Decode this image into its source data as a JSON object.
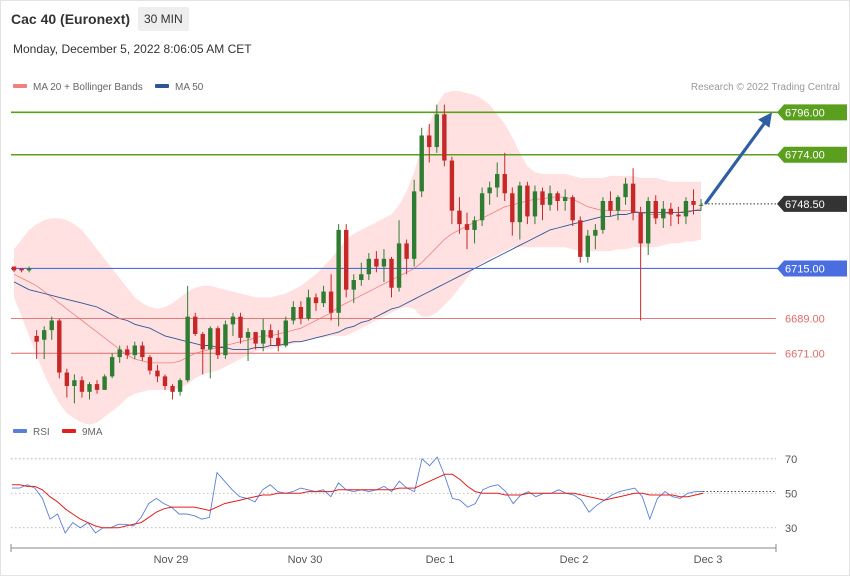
{
  "header": {
    "title": "Cac 40 (Euronext)",
    "interval": "30 MIN",
    "datetime": "Monday, December 5, 2022 8:06:05 AM CET"
  },
  "price_legend": {
    "items": [
      {
        "label": "MA 20 + Bollinger Bands",
        "color": "#f08080"
      },
      {
        "label": "MA 50",
        "color": "#2f5597"
      }
    ],
    "credit": "Research © 2022 Trading Central"
  },
  "rsi_legend": {
    "items": [
      {
        "label": "RSI",
        "color": "#5b7fd6"
      },
      {
        "label": "9MA",
        "color": "#e02020"
      }
    ]
  },
  "colors": {
    "resistance": "#5aa01e",
    "support_blue": "#4a6ee0",
    "support_red": "#e06b6b",
    "current": "#333333",
    "up_candle": "#2e7d32",
    "down_candle": "#c62828",
    "band_fill": "#ffdcdc",
    "arrow": "#2f5fa0"
  },
  "x_axis": {
    "labels": [
      "Nov 29",
      "Nov 30",
      "Dec 1",
      "Dec 2",
      "Dec 3"
    ]
  },
  "chart_data": [
    {
      "type": "candlestick",
      "price_range": [
        6640,
        6805
      ],
      "levels": [
        {
          "value": 6796.0,
          "label": "6796.00",
          "kind": "resistance"
        },
        {
          "value": 6774.0,
          "label": "6774.00",
          "kind": "resistance"
        },
        {
          "value": 6748.5,
          "label": "6748.50",
          "kind": "current"
        },
        {
          "value": 6715.0,
          "label": "6715.00",
          "kind": "support"
        },
        {
          "value": 6689.0,
          "label": "6689.00",
          "kind": "support-weak"
        },
        {
          "value": 6671.0,
          "label": "6671.00",
          "kind": "support-weak"
        }
      ],
      "ohlc": [
        [
          6716,
          6716,
          6713,
          6714
        ],
        [
          6715,
          6715,
          6713,
          6714
        ],
        [
          6714,
          6716,
          6713,
          6715
        ],
        [
          6680,
          6683,
          6668,
          6677
        ],
        [
          6678,
          6685,
          6668,
          6683
        ],
        [
          6683,
          6690,
          6678,
          6688
        ],
        [
          6688,
          6689,
          6658,
          6661
        ],
        [
          6661,
          6663,
          6648,
          6654
        ],
        [
          6654,
          6660,
          6645,
          6657
        ],
        [
          6657,
          6659,
          6648,
          6651
        ],
        [
          6651,
          6656,
          6647,
          6655
        ],
        [
          6655,
          6657,
          6650,
          6652
        ],
        [
          6652,
          6660,
          6652,
          6659
        ],
        [
          6659,
          6671,
          6658,
          6669
        ],
        [
          6669,
          6675,
          6666,
          6673
        ],
        [
          6673,
          6675,
          6668,
          6670
        ],
        [
          6670,
          6677,
          6668,
          6675
        ],
        [
          6675,
          6677,
          6667,
          6669
        ],
        [
          6669,
          6670,
          6660,
          6662
        ],
        [
          6662,
          6665,
          6656,
          6659
        ],
        [
          6659,
          6660,
          6652,
          6654
        ],
        [
          6654,
          6655,
          6647,
          6651
        ],
        [
          6651,
          6658,
          6649,
          6657
        ],
        [
          6657,
          6706,
          6656,
          6690
        ],
        [
          6690,
          6692,
          6680,
          6681
        ],
        [
          6681,
          6682,
          6660,
          6673
        ],
        [
          6673,
          6685,
          6658,
          6684
        ],
        [
          6684,
          6685,
          6668,
          6670
        ],
        [
          6670,
          6688,
          6668,
          6686
        ],
        [
          6686,
          6692,
          6680,
          6690
        ],
        [
          6690,
          6692,
          6676,
          6679
        ],
        [
          6679,
          6684,
          6667,
          6682
        ],
        [
          6682,
          6682,
          6673,
          6676
        ],
        [
          6676,
          6689,
          6672,
          6683
        ],
        [
          6683,
          6686,
          6675,
          6679
        ],
        [
          6679,
          6683,
          6672,
          6675
        ],
        [
          6675,
          6690,
          6674,
          6688
        ],
        [
          6688,
          6698,
          6686,
          6695
        ],
        [
          6695,
          6698,
          6686,
          6689
        ],
        [
          6689,
          6704,
          6688,
          6700
        ],
        [
          6700,
          6702,
          6693,
          6697
        ],
        [
          6697,
          6706,
          6695,
          6703
        ],
        [
          6703,
          6712,
          6688,
          6692
        ],
        [
          6692,
          6738,
          6685,
          6735
        ],
        [
          6735,
          6738,
          6700,
          6704
        ],
        [
          6704,
          6712,
          6697,
          6709
        ],
        [
          6709,
          6718,
          6706,
          6712
        ],
        [
          6712,
          6723,
          6709,
          6720
        ],
        [
          6720,
          6724,
          6713,
          6716
        ],
        [
          6716,
          6725,
          6708,
          6720
        ],
        [
          6720,
          6721,
          6700,
          6705
        ],
        [
          6705,
          6740,
          6703,
          6728
        ],
        [
          6728,
          6730,
          6712,
          6720
        ],
        [
          6720,
          6761,
          6716,
          6755
        ],
        [
          6755,
          6788,
          6752,
          6784
        ],
        [
          6784,
          6790,
          6770,
          6778
        ],
        [
          6778,
          6800,
          6775,
          6795
        ],
        [
          6795,
          6800,
          6768,
          6771
        ],
        [
          6771,
          6773,
          6738,
          6745
        ],
        [
          6745,
          6752,
          6733,
          6738
        ],
        [
          6738,
          6744,
          6725,
          6735
        ],
        [
          6735,
          6742,
          6728,
          6740
        ],
        [
          6740,
          6757,
          6737,
          6754
        ],
        [
          6754,
          6760,
          6748,
          6757
        ],
        [
          6757,
          6770,
          6752,
          6764
        ],
        [
          6764,
          6775,
          6750,
          6754
        ],
        [
          6754,
          6757,
          6732,
          6739
        ],
        [
          6739,
          6760,
          6730,
          6758
        ],
        [
          6758,
          6760,
          6738,
          6742
        ],
        [
          6742,
          6758,
          6738,
          6755
        ],
        [
          6755,
          6757,
          6740,
          6748
        ],
        [
          6748,
          6758,
          6745,
          6754
        ],
        [
          6754,
          6755,
          6745,
          6750
        ],
        [
          6750,
          6756,
          6745,
          6752
        ],
        [
          6752,
          6753,
          6737,
          6740
        ],
        [
          6740,
          6742,
          6718,
          6721
        ],
        [
          6721,
          6735,
          6718,
          6732
        ],
        [
          6732,
          6738,
          6725,
          6735
        ],
        [
          6735,
          6752,
          6733,
          6750
        ],
        [
          6750,
          6755,
          6742,
          6745
        ],
        [
          6745,
          6753,
          6740,
          6752
        ],
        [
          6752,
          6762,
          6748,
          6759
        ],
        [
          6759,
          6767,
          6740,
          6744
        ],
        [
          6744,
          6747,
          6688,
          6728
        ],
        [
          6728,
          6752,
          6722,
          6750
        ],
        [
          6750,
          6753,
          6738,
          6741
        ],
        [
          6741,
          6750,
          6736,
          6746
        ],
        [
          6746,
          6749,
          6737,
          6743
        ],
        [
          6743,
          6747,
          6738,
          6742
        ],
        [
          6742,
          6752,
          6738,
          6750
        ],
        [
          6750,
          6756,
          6743,
          6748
        ],
        [
          6748,
          6751,
          6745,
          6748
        ]
      ],
      "ma20": [
        6712,
        6710,
        6708,
        6706,
        6703,
        6700,
        6697,
        6694,
        6691,
        6688,
        6685,
        6682,
        6679,
        6676,
        6673,
        6670,
        6668,
        6667,
        6666,
        6666,
        6666,
        6666,
        6667,
        6669,
        6671,
        6672,
        6673,
        6674,
        6675,
        6676,
        6677,
        6678,
        6679,
        6680,
        6680,
        6681,
        6682,
        6683,
        6684,
        6686,
        6688,
        6690,
        6692,
        6695,
        6697,
        6699,
        6701,
        6703,
        6705,
        6707,
        6709,
        6711,
        6713,
        6715,
        6718,
        6722,
        6726,
        6730,
        6733,
        6735,
        6737,
        6739,
        6741,
        6743,
        6745,
        6747,
        6748,
        6749,
        6750,
        6751,
        6751,
        6752,
        6752,
        6752,
        6751,
        6749,
        6747,
        6746,
        6745,
        6745,
        6745,
        6745,
        6745,
        6744,
        6743,
        6743,
        6743,
        6744,
        6744,
        6745,
        6745,
        6746
      ],
      "bb_upper": [
        6725,
        6730,
        6735,
        6738,
        6740,
        6741,
        6741,
        6740,
        6738,
        6735,
        6730,
        6725,
        6720,
        6715,
        6710,
        6705,
        6700,
        6697,
        6695,
        6694,
        6695,
        6697,
        6700,
        6703,
        6705,
        6706,
        6706,
        6705,
        6704,
        6703,
        6702,
        6701,
        6700,
        6700,
        6700,
        6701,
        6702,
        6704,
        6706,
        6709,
        6712,
        6716,
        6720,
        6725,
        6730,
        6733,
        6735,
        6737,
        6739,
        6741,
        6743,
        6748,
        6755,
        6765,
        6778,
        6790,
        6800,
        6806,
        6807,
        6807,
        6806,
        6805,
        6803,
        6800,
        6795,
        6790,
        6783,
        6775,
        6768,
        6765,
        6764,
        6764,
        6764,
        6764,
        6763,
        6762,
        6762,
        6762,
        6762,
        6763,
        6763,
        6763,
        6763,
        6762,
        6762,
        6762,
        6761,
        6760,
        6760,
        6760,
        6760,
        6760
      ],
      "bb_lower": [
        6700,
        6690,
        6680,
        6670,
        6660,
        6652,
        6645,
        6640,
        6637,
        6635,
        6634,
        6635,
        6638,
        6641,
        6644,
        6648,
        6650,
        6651,
        6652,
        6652,
        6652,
        6652,
        6653,
        6655,
        6658,
        6660,
        6661,
        6662,
        6664,
        6666,
        6668,
        6670,
        6672,
        6673,
        6673,
        6674,
        6675,
        6676,
        6677,
        6678,
        6679,
        6679,
        6680,
        6680,
        6680,
        6682,
        6684,
        6686,
        6688,
        6690,
        6692,
        6694,
        6695,
        6694,
        6690,
        6690,
        6692,
        6696,
        6700,
        6705,
        6710,
        6715,
        6718,
        6720,
        6722,
        6724,
        6726,
        6726,
        6726,
        6726,
        6726,
        6726,
        6726,
        6726,
        6725,
        6724,
        6724,
        6724,
        6724,
        6724,
        6725,
        6725,
        6726,
        6726,
        6726,
        6726,
        6727,
        6728,
        6728,
        6729,
        6729,
        6730
      ],
      "ma50": [
        6708,
        6706,
        6704,
        6703,
        6702,
        6701,
        6700,
        6699,
        6698,
        6697,
        6696,
        6695,
        6693,
        6691,
        6689,
        6688,
        6686,
        6685,
        6684,
        6682,
        6680,
        6679,
        6678,
        6677,
        6676,
        6675,
        6675,
        6674,
        6674,
        6673,
        6673,
        6673,
        6674,
        6674,
        6675,
        6675,
        6676,
        6677,
        6677,
        6678,
        6679,
        6680,
        6681,
        6682,
        6684,
        6685,
        6687,
        6688,
        6690,
        6692,
        6694,
        6695,
        6697,
        6699,
        6701,
        6703,
        6705,
        6707,
        6709,
        6711,
        6713,
        6715,
        6717,
        6719,
        6721,
        6723,
        6725,
        6727,
        6729,
        6731,
        6733,
        6735,
        6736,
        6737,
        6738,
        6739,
        6740,
        6741,
        6742,
        6742,
        6743,
        6743,
        6744,
        6744,
        6744,
        6744,
        6744,
        6744,
        6744,
        6744,
        6745,
        6745
      ]
    },
    {
      "type": "line",
      "y_range": [
        20,
        78
      ],
      "y_ticks": [
        70,
        50,
        30
      ],
      "series": [
        {
          "name": "RSI",
          "values": [
            53,
            53,
            55,
            53,
            47,
            35,
            38,
            27,
            33,
            30,
            33,
            27,
            30,
            30,
            32,
            32,
            31,
            36,
            44,
            47,
            44,
            42,
            38,
            38,
            37,
            35,
            36,
            62,
            57,
            52,
            48,
            47,
            45,
            52,
            55,
            51,
            50,
            51,
            53,
            52,
            51,
            52,
            48,
            56,
            52,
            51,
            52,
            51,
            52,
            54,
            51,
            57,
            53,
            51,
            70,
            66,
            71,
            60,
            47,
            46,
            42,
            44,
            52,
            54,
            55,
            51,
            44,
            49,
            51,
            48,
            50,
            50,
            52,
            50,
            49,
            46,
            39,
            43,
            46,
            49,
            51,
            52,
            53,
            48,
            35,
            47,
            51,
            48,
            47,
            50,
            51,
            51
          ]
        },
        {
          "name": "9MA",
          "values": [
            55,
            55,
            54,
            54,
            52,
            48,
            45,
            41,
            38,
            35,
            33,
            31,
            30,
            30,
            30,
            31,
            32,
            33,
            36,
            39,
            41,
            42,
            42,
            42,
            42,
            41,
            40,
            42,
            44,
            45,
            46,
            47,
            48,
            49,
            49,
            50,
            50,
            50,
            50,
            51,
            51,
            51,
            51,
            52,
            52,
            52,
            52,
            52,
            52,
            52,
            52,
            53,
            53,
            53,
            55,
            57,
            59,
            61,
            61,
            58,
            54,
            51,
            50,
            50,
            50,
            49,
            49,
            49,
            50,
            50,
            50,
            50,
            50,
            50,
            50,
            49,
            48,
            47,
            46,
            47,
            48,
            49,
            50,
            50,
            49,
            49,
            49,
            49,
            48,
            48,
            49,
            50
          ]
        }
      ]
    }
  ]
}
